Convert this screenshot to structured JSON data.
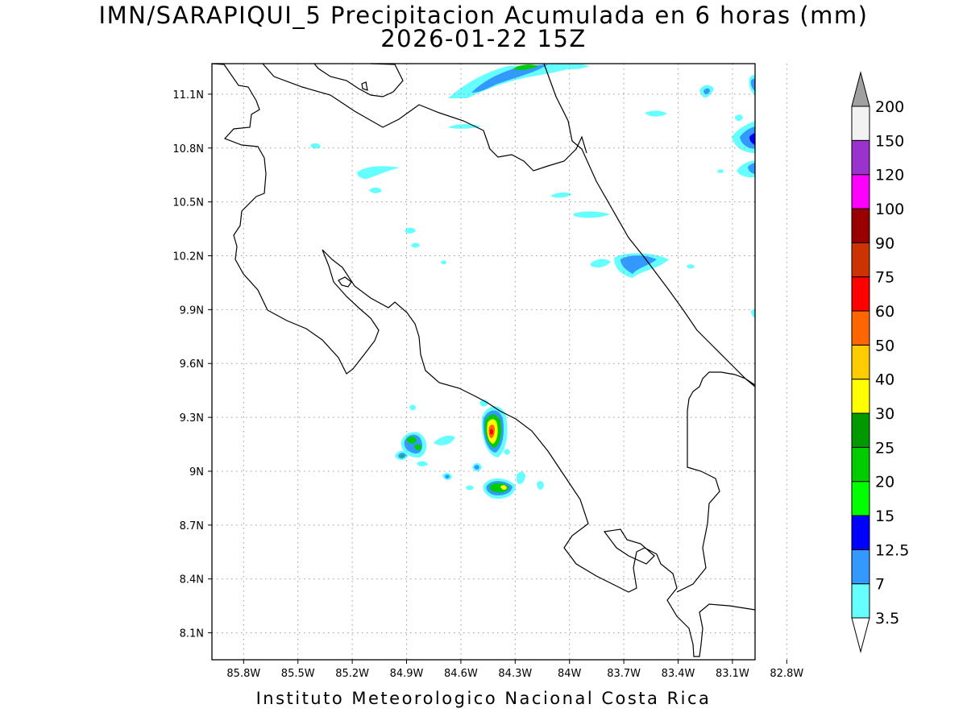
{
  "title_line1": "IMN/SARAPIQUI_5 Precipitacion Acumulada en 6 horas (mm)",
  "title_line2": "2026-01-22 15Z",
  "footer": "Instituto Meteorologico Nacional Costa Rica",
  "map": {
    "lon_range": [
      -85.975,
      -82.975
    ],
    "lat_range": [
      7.95,
      11.27
    ],
    "lon_ticks": [
      {
        "value": -85.8,
        "label": "85.8W"
      },
      {
        "value": -85.5,
        "label": "85.5W"
      },
      {
        "value": -85.2,
        "label": "85.2W"
      },
      {
        "value": -84.9,
        "label": "84.9W"
      },
      {
        "value": -84.6,
        "label": "84.6W"
      },
      {
        "value": -84.3,
        "label": "84.3W"
      },
      {
        "value": -84.0,
        "label": "84W"
      },
      {
        "value": -83.7,
        "label": "83.7W"
      },
      {
        "value": -83.4,
        "label": "83.4W"
      },
      {
        "value": -83.1,
        "label": "83.1W"
      },
      {
        "value": -82.8,
        "label": "82.8W"
      }
    ],
    "lat_ticks": [
      {
        "value": 11.1,
        "label": "11.1N"
      },
      {
        "value": 10.8,
        "label": "10.8N"
      },
      {
        "value": 10.5,
        "label": "10.5N"
      },
      {
        "value": 10.2,
        "label": "10.2N"
      },
      {
        "value": 9.9,
        "label": "9.9N"
      },
      {
        "value": 9.6,
        "label": "9.6N"
      },
      {
        "value": 9.3,
        "label": "9.3N"
      },
      {
        "value": 9.0,
        "label": "9N"
      },
      {
        "value": 8.7,
        "label": "8.7N"
      },
      {
        "value": 8.4,
        "label": "8.4N"
      },
      {
        "value": 8.1,
        "label": "8.1N"
      }
    ],
    "grid": true
  },
  "colorbar": {
    "labels": [
      "3.5",
      "7",
      "12.5",
      "15",
      "20",
      "25",
      "30",
      "40",
      "50",
      "60",
      "75",
      "90",
      "100",
      "120",
      "150",
      "200"
    ],
    "colors": [
      "#ffffff",
      "#66ffff",
      "#3399ff",
      "#0000ff",
      "#00ff00",
      "#00cc00",
      "#009900",
      "#ffff00",
      "#ffcc00",
      "#ff6600",
      "#ff0000",
      "#cc3300",
      "#990000",
      "#ff00ff",
      "#9933cc",
      "#f2f2f2",
      "#a0a0a0"
    ]
  }
}
